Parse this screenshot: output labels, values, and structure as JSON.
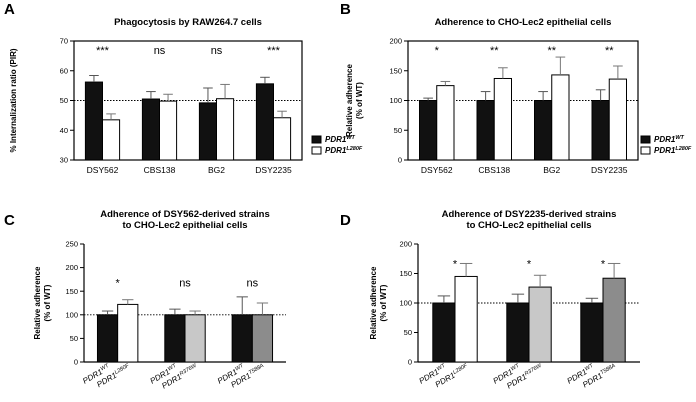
{
  "colors": {
    "dark": "#111111",
    "white": "#ffffff",
    "light_gray": "#c8c8c8",
    "mid_gray": "#8c8c8c"
  },
  "chart_data": [
    {
      "panel": "A",
      "type": "bar",
      "title": "Phagocytosis by RAW264.7 cells",
      "ylabel": "% Internalization ratio (PIR)",
      "ylim": [
        30,
        70
      ],
      "yticks": [
        30,
        40,
        50,
        60,
        70
      ],
      "baseline": 50,
      "frame": "box",
      "categories": [
        "DSY562",
        "CBS138",
        "BG2",
        "DSY2235"
      ],
      "series": [
        {
          "name": "PDR1",
          "sup": "WT",
          "color": "#111111",
          "values": [
            56.2,
            50.5,
            49.2,
            55.6
          ],
          "errors": [
            2.2,
            2.5,
            5.0,
            2.2
          ]
        },
        {
          "name": "PDR1",
          "sup": "L280F",
          "color": "#ffffff",
          "values": [
            43.5,
            49.8,
            50.6,
            44.2
          ],
          "errors": [
            2.0,
            2.3,
            4.8,
            2.2
          ]
        }
      ],
      "significance": [
        "***",
        "ns",
        "ns",
        "***"
      ],
      "legend": "right"
    },
    {
      "panel": "B",
      "type": "bar",
      "title": "Adherence to CHO-Lec2 epithelial cells",
      "ylabel": [
        "Relative adherence",
        "(% of WT)"
      ],
      "ylim": [
        0,
        200
      ],
      "yticks": [
        0,
        50,
        100,
        150,
        200
      ],
      "baseline": 100,
      "frame": "box",
      "categories": [
        "DSY562",
        "CBS138",
        "BG2",
        "DSY2235"
      ],
      "series": [
        {
          "name": "PDR1",
          "sup": "WT",
          "color": "#111111",
          "values": [
            100,
            100,
            100,
            100
          ],
          "errors": [
            4,
            15,
            15,
            18
          ]
        },
        {
          "name": "PDR1",
          "sup": "L280F",
          "color": "#ffffff",
          "values": [
            125,
            137,
            143,
            136
          ],
          "errors": [
            7,
            18,
            30,
            22
          ]
        }
      ],
      "significance": [
        "*",
        "**",
        "**",
        "**"
      ],
      "legend": "right"
    },
    {
      "panel": "C",
      "type": "bar",
      "title": [
        "Adherence of DSY562-derived strains",
        "to CHO-Lec2 epithelial cells"
      ],
      "ylabel": [
        "Relative adherence",
        "(% of WT)"
      ],
      "ylim": [
        0,
        250
      ],
      "yticks": [
        0,
        50,
        100,
        150,
        200,
        250
      ],
      "baseline": 100,
      "frame": "open",
      "groups": [
        {
          "bars": [
            {
              "name": "PDR1",
              "sup": "WT",
              "value": 100,
              "error": 8,
              "color": "#111111"
            },
            {
              "name": "PDR1",
              "sup": "L280F",
              "value": 122,
              "error": 10,
              "color": "#ffffff"
            }
          ],
          "significance": "*"
        },
        {
          "bars": [
            {
              "name": "PDR1",
              "sup": "WT",
              "value": 100,
              "error": 12,
              "color": "#111111"
            },
            {
              "name": "PDR1",
              "sup": "R376W",
              "value": 100,
              "error": 8,
              "color": "#c8c8c8"
            }
          ],
          "significance": "ns"
        },
        {
          "bars": [
            {
              "name": "PDR1",
              "sup": "WT",
              "value": 100,
              "error": 38,
              "color": "#111111"
            },
            {
              "name": "PDR1",
              "sup": "T588A",
              "value": 100,
              "error": 25,
              "color": "#8c8c8c"
            }
          ],
          "significance": "ns"
        }
      ]
    },
    {
      "panel": "D",
      "type": "bar",
      "title": [
        "Adherence of DSY2235-derived strains",
        "to CHO-Lec2 epithelial cells"
      ],
      "ylabel": [
        "Relative adherence",
        "(% of WT)"
      ],
      "ylim": [
        0,
        200
      ],
      "yticks": [
        0,
        50,
        100,
        150,
        200
      ],
      "baseline": 100,
      "frame": "open",
      "groups": [
        {
          "bars": [
            {
              "name": "PDR1",
              "sup": "WT",
              "value": 100,
              "error": 12,
              "color": "#111111"
            },
            {
              "name": "PDR1",
              "sup": "L280F",
              "value": 145,
              "error": 22,
              "color": "#ffffff"
            }
          ],
          "significance": "*"
        },
        {
          "bars": [
            {
              "name": "PDR1",
              "sup": "WT",
              "value": 100,
              "error": 15,
              "color": "#111111"
            },
            {
              "name": "PDR1",
              "sup": "R376W",
              "value": 127,
              "error": 20,
              "color": "#c8c8c8"
            }
          ],
          "significance": "*"
        },
        {
          "bars": [
            {
              "name": "PDR1",
              "sup": "WT",
              "value": 100,
              "error": 8,
              "color": "#111111"
            },
            {
              "name": "PDR1",
              "sup": "T588A",
              "value": 142,
              "error": 25,
              "color": "#8c8c8c"
            }
          ],
          "significance": "*"
        }
      ]
    }
  ]
}
